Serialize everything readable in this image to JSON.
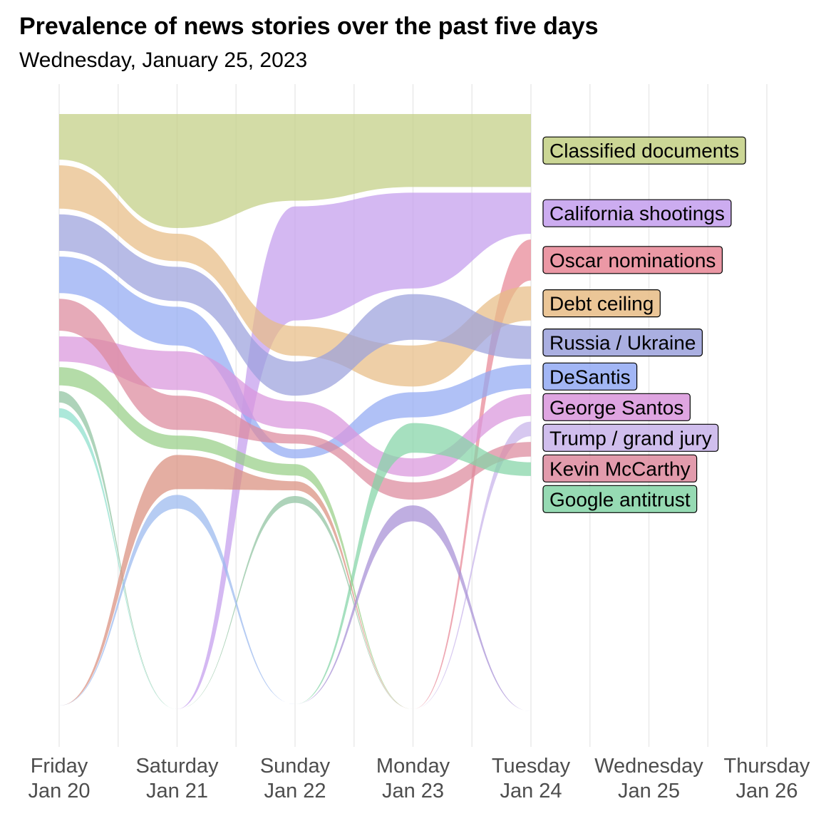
{
  "header": {
    "title": "Prevalence of news stories over the past five days",
    "subtitle": "Wednesday, January 25, 2023"
  },
  "chart_data": {
    "type": "area",
    "title": "Prevalence of news stories over the past five days",
    "subtitle": "Wednesday, January 25, 2023",
    "x_ticks": [
      {
        "line1": "Friday",
        "line2": "Jan 20"
      },
      {
        "line1": "Saturday",
        "line2": "Jan 21"
      },
      {
        "line1": "Sunday",
        "line2": "Jan 22"
      },
      {
        "line1": "Monday",
        "line2": "Jan 23"
      },
      {
        "line1": "Tuesday",
        "line2": "Jan 24"
      },
      {
        "line1": "Wednesday",
        "line2": "Jan 25"
      },
      {
        "line1": "Thursday",
        "line2": "Jan 26"
      }
    ],
    "grid": true,
    "legend": "labels at right end of each band",
    "series": [
      {
        "name": "Classified documents",
        "color": "#c2cf83",
        "rank": [
          2,
          1,
          1,
          1,
          1
        ],
        "values": [
          1.0,
          2.5,
          1.9,
          1.6,
          1.6
        ]
      },
      {
        "name": "California shootings",
        "color": "#c39ded",
        "rank": [
          11,
          11,
          2,
          2,
          2
        ],
        "values": [
          0,
          0,
          2.5,
          2.1,
          0.9
        ]
      },
      {
        "name": "Oscar nominations",
        "color": "#e88695",
        "rank": [
          11,
          11,
          11,
          11,
          3
        ],
        "values": [
          0,
          0,
          0,
          0,
          0.9
        ]
      },
      {
        "name": "Debt ceiling",
        "color": "#e8bc85",
        "rank": [
          3,
          3,
          4,
          4,
          4
        ],
        "values": [
          0.95,
          0.6,
          0.65,
          0.9,
          0.75
        ]
      },
      {
        "name": "Russia / Ukraine",
        "color": "#9ba1dc",
        "rank": [
          4,
          4,
          5,
          3,
          5
        ],
        "values": [
          0.8,
          0.75,
          0.75,
          1.0,
          0.72
        ]
      },
      {
        "name": "DeSantis",
        "color": "#92a9f3",
        "rank": [
          5,
          5,
          8,
          5,
          6
        ],
        "values": [
          0.8,
          0.85,
          0.2,
          0.55,
          0.52
        ]
      },
      {
        "name": "George Santos",
        "color": "#d995dc",
        "rank": [
          7,
          6,
          6,
          7,
          7
        ],
        "values": [
          0.55,
          0.85,
          0.6,
          0.4,
          0.48
        ]
      },
      {
        "name": "Trump / grand jury",
        "color": "#c8b3ea",
        "rank": [
          11,
          11,
          11,
          11,
          8
        ],
        "values": [
          0,
          0,
          0,
          0,
          0.32
        ]
      },
      {
        "name": "Kevin McCarthy",
        "color": "#dd899d",
        "rank": [
          6,
          7,
          7,
          8,
          9
        ],
        "values": [
          0.7,
          0.75,
          0.2,
          0.38,
          0.32
        ]
      },
      {
        "name": "Google antitrust",
        "color": "#84d4a6",
        "rank": [
          11,
          11,
          11,
          6,
          10
        ],
        "values": [
          0,
          0,
          0,
          0.65,
          0.3
        ]
      },
      {
        "name": "",
        "color": "#97cf87",
        "rank": [
          8,
          8,
          8,
          11,
          11
        ],
        "values": [
          0.4,
          0.3,
          0.25,
          0,
          0
        ]
      },
      {
        "name": "",
        "color": "#8fc29f",
        "rank": [
          9,
          11,
          9,
          11,
          11
        ],
        "values": [
          0.25,
          0,
          0.15,
          0,
          0
        ]
      },
      {
        "name": "",
        "color": "#8cdfcc",
        "rank": [
          10,
          11,
          11,
          11,
          11
        ],
        "values": [
          0.2,
          0,
          0,
          0,
          0
        ]
      },
      {
        "name": "",
        "color": "#9ab8ee",
        "rank": [
          11,
          9,
          11,
          11,
          11
        ],
        "values": [
          0,
          0.3,
          0,
          0,
          0
        ]
      },
      {
        "name": "",
        "color": "#da8f7e",
        "rank": [
          11,
          8,
          8,
          11,
          11
        ],
        "values": [
          0,
          0.75,
          0.2,
          0,
          0
        ]
      },
      {
        "name": "",
        "color": "#a68fd6",
        "rank": [
          11,
          11,
          11,
          8,
          11
        ],
        "values": [
          0,
          0,
          0,
          0.35,
          0
        ]
      }
    ]
  }
}
